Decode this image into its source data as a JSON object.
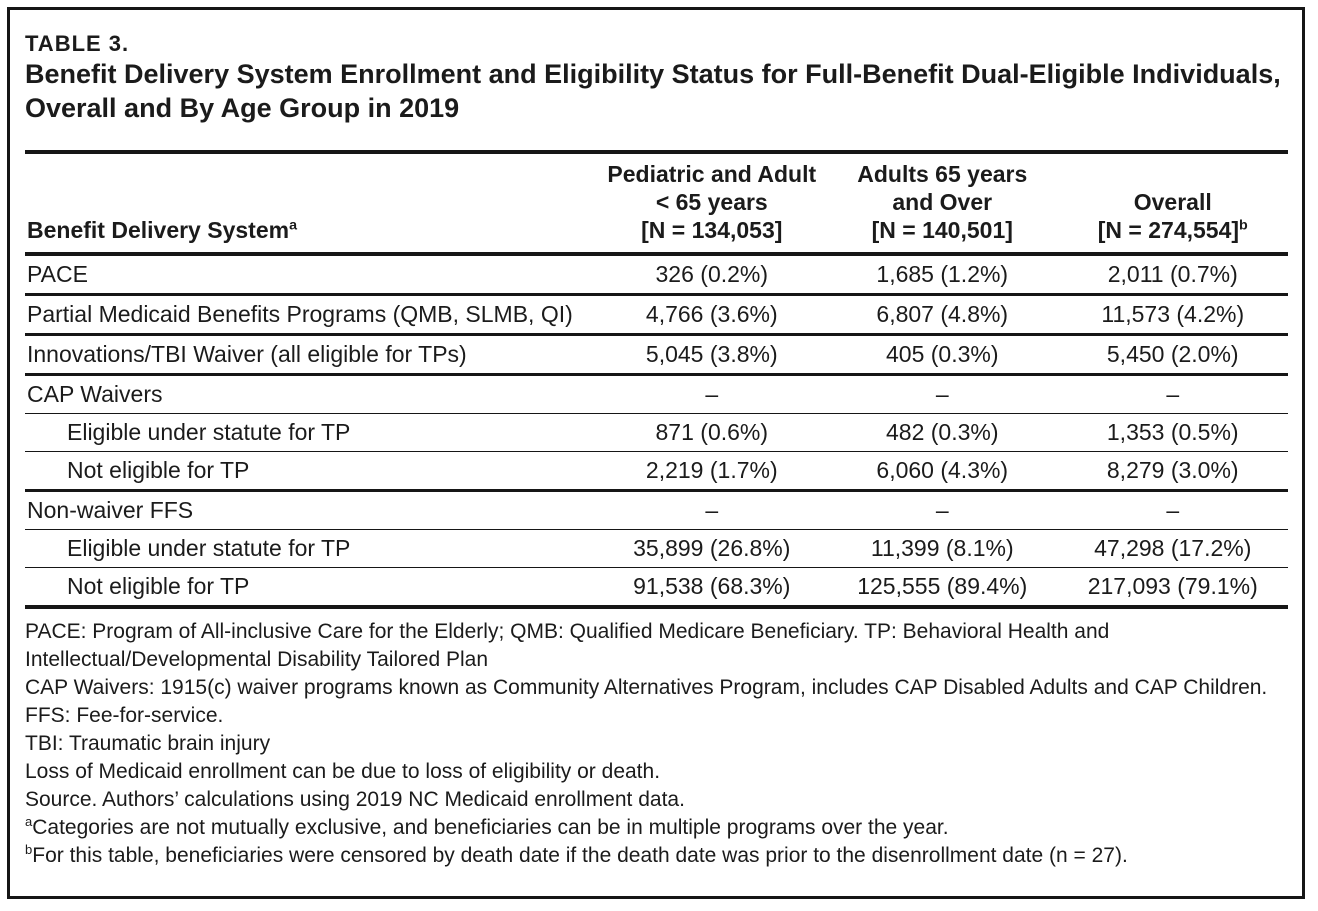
{
  "header": {
    "table_label": "TABLE 3.",
    "title_line1": "Benefit Delivery System Enrollment and Eligibility Status for Full-Benefit Dual-Eligible Individuals,",
    "title_line2": "Overall and By Age Group in 2019"
  },
  "table": {
    "row_header_label": "Benefit Delivery System",
    "row_header_sup": "a",
    "columns": [
      {
        "lines": [
          "Pediatric and Adult",
          "< 65 years",
          "[N = 134,053]"
        ],
        "sup": ""
      },
      {
        "lines": [
          "Adults 65 years",
          "and Over",
          "[N = 140,501]"
        ],
        "sup": ""
      },
      {
        "lines": [
          "Overall",
          "[N = 274,554]"
        ],
        "sup": "b"
      }
    ],
    "rows": [
      {
        "label": "PACE",
        "indent": false,
        "sep": "thick",
        "values": [
          "326 (0.2%)",
          "1,685 (1.2%)",
          "2,011 (0.7%)"
        ]
      },
      {
        "label": "Partial Medicaid Benefits Programs (QMB, SLMB, QI)",
        "indent": false,
        "sep": "thick",
        "values": [
          "4,766 (3.6%)",
          "6,807 (4.8%)",
          "11,573 (4.2%)"
        ]
      },
      {
        "label": "Innovations/TBI Waiver (all eligible for TPs)",
        "indent": false,
        "sep": "thick",
        "values": [
          "5,045 (3.8%)",
          "405 (0.3%)",
          "5,450 (2.0%)"
        ]
      },
      {
        "label": "CAP Waivers",
        "indent": false,
        "sep": "thin",
        "values": [
          "–",
          "–",
          "–"
        ]
      },
      {
        "label": "Eligible under statute for TP",
        "indent": true,
        "sep": "thin",
        "values": [
          "871 (0.6%)",
          "482 (0.3%)",
          "1,353 (0.5%)"
        ]
      },
      {
        "label": "Not eligible for TP",
        "indent": true,
        "sep": "thick",
        "values": [
          "2,219 (1.7%)",
          "6,060 (4.3%)",
          "8,279 (3.0%)"
        ]
      },
      {
        "label": "Non-waiver FFS",
        "indent": false,
        "sep": "thin",
        "values": [
          "–",
          "–",
          "–"
        ]
      },
      {
        "label": "Eligible under statute for TP",
        "indent": true,
        "sep": "thin",
        "values": [
          "35,899 (26.8%)",
          "11,399 (8.1%)",
          "47,298 (17.2%)"
        ]
      },
      {
        "label": "Not eligible for TP",
        "indent": true,
        "sep": "bottom",
        "values": [
          "91,538 (68.3%)",
          "125,555 (89.4%)",
          "217,093 (79.1%)"
        ]
      }
    ]
  },
  "footnotes": [
    {
      "sup": "",
      "text": "PACE: Program of All-inclusive Care for the Elderly; QMB: Qualified Medicare Beneficiary. TP: Behavioral Health and Intellectual/Developmental Disability Tailored Plan"
    },
    {
      "sup": "",
      "text": "CAP Waivers: 1915(c) waiver programs known as Community Alternatives Program, includes CAP Disabled Adults and CAP Children."
    },
    {
      "sup": "",
      "text": "FFS: Fee-for-service."
    },
    {
      "sup": "",
      "text": "TBI: Traumatic brain injury"
    },
    {
      "sup": "",
      "text": "Loss of Medicaid enrollment can be due to loss of eligibility or death."
    },
    {
      "sup": "",
      "text": "Source. Authors’ calculations using 2019 NC Medicaid enrollment data."
    },
    {
      "sup": "a",
      "text": "Categories are not mutually exclusive, and beneficiaries can be in multiple programs over the year."
    },
    {
      "sup": "b",
      "text": "For this table, beneficiaries were censored by death date if the death date was prior to the disenrollment date (n = 27)."
    }
  ]
}
